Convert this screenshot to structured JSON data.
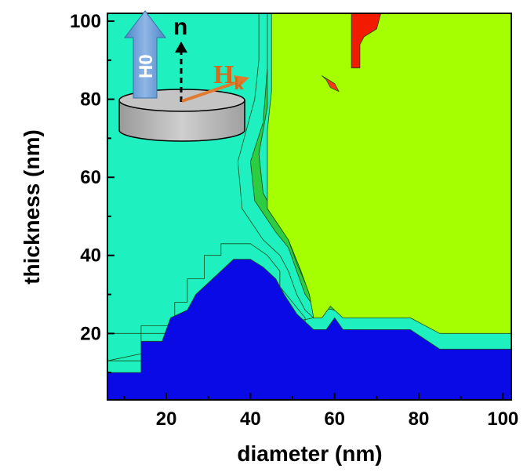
{
  "chart_data": {
    "type": "heatmap",
    "xlabel": "diameter (nm)",
    "ylabel": "thickness (nm)",
    "xlim": [
      6,
      102
    ],
    "ylim": [
      3,
      102
    ],
    "x_ticks": [
      20,
      40,
      60,
      80,
      100
    ],
    "y_ticks": [
      20,
      40,
      60,
      80,
      100
    ],
    "regions": [
      {
        "name": "teal",
        "color": "#1EF0C0",
        "polygon": [
          [
            6,
            13
          ],
          [
            14,
            13
          ],
          [
            14,
            22
          ],
          [
            22,
            22
          ],
          [
            22,
            28
          ],
          [
            25,
            28
          ],
          [
            25,
            34
          ],
          [
            29,
            34
          ],
          [
            29,
            40
          ],
          [
            33,
            40
          ],
          [
            33,
            43
          ],
          [
            40,
            43
          ],
          [
            44,
            40
          ],
          [
            47,
            36
          ],
          [
            47,
            32
          ],
          [
            50,
            28
          ],
          [
            53,
            24
          ],
          [
            53,
            20
          ],
          [
            6,
            20
          ],
          [
            6,
            102
          ],
          [
            42,
            102
          ],
          [
            42,
            90
          ],
          [
            41,
            80
          ],
          [
            39,
            72
          ],
          [
            37,
            64
          ],
          [
            38,
            52
          ],
          [
            43,
            44
          ],
          [
            47,
            40
          ],
          [
            49,
            36
          ],
          [
            51,
            30
          ],
          [
            53,
            26
          ],
          [
            55,
            24
          ]
        ]
      },
      {
        "name": "green",
        "color": "#2ECC40",
        "polygon": [
          [
            40,
            102
          ],
          [
            44,
            102
          ],
          [
            44,
            88
          ],
          [
            43,
            74
          ],
          [
            40,
            64
          ],
          [
            41,
            54
          ],
          [
            46,
            46
          ],
          [
            49,
            42
          ],
          [
            51,
            36
          ],
          [
            53,
            30
          ],
          [
            55,
            27
          ],
          [
            60,
            26
          ],
          [
            62,
            26
          ],
          [
            84,
            24
          ],
          [
            102,
            20
          ],
          [
            102,
            22
          ],
          [
            84,
            26
          ],
          [
            60,
            28
          ],
          [
            55,
            29
          ],
          [
            53,
            33
          ],
          [
            51,
            38
          ],
          [
            49,
            44
          ],
          [
            46,
            50
          ],
          [
            43,
            56
          ],
          [
            42,
            66
          ],
          [
            44,
            78
          ],
          [
            44,
            92
          ],
          [
            44,
            102
          ]
        ]
      },
      {
        "name": "yellow-green",
        "color": "#A6FF00",
        "polygon": [
          [
            44,
            102
          ],
          [
            102,
            102
          ],
          [
            102,
            20
          ],
          [
            85,
            20
          ],
          [
            78,
            24
          ],
          [
            62,
            24
          ],
          [
            59,
            27
          ],
          [
            57,
            24
          ],
          [
            55,
            24
          ],
          [
            54,
            30
          ],
          [
            52,
            36
          ],
          [
            49,
            44
          ],
          [
            44,
            52
          ],
          [
            44,
            72
          ],
          [
            45,
            82
          ],
          [
            45,
            102
          ]
        ]
      },
      {
        "name": "blue",
        "color": "#0A0AE6",
        "polygon": [
          [
            6,
            3
          ],
          [
            102,
            3
          ],
          [
            102,
            16
          ],
          [
            85,
            16
          ],
          [
            78,
            21
          ],
          [
            62,
            21
          ],
          [
            60,
            24
          ],
          [
            58,
            21
          ],
          [
            55,
            21
          ],
          [
            51,
            25
          ],
          [
            48,
            30
          ],
          [
            46,
            34
          ],
          [
            43,
            37
          ],
          [
            40,
            39
          ],
          [
            36,
            39
          ],
          [
            33,
            36
          ],
          [
            30,
            33
          ],
          [
            27,
            30
          ],
          [
            25,
            26
          ],
          [
            21,
            24
          ],
          [
            19,
            18
          ],
          [
            14,
            18
          ],
          [
            14,
            10
          ],
          [
            6,
            10
          ]
        ]
      },
      {
        "name": "red",
        "color": "#F21A00",
        "polygon": [
          [
            64,
            102
          ],
          [
            71,
            102
          ],
          [
            70,
            98
          ],
          [
            67,
            96
          ],
          [
            66,
            94
          ],
          [
            66,
            88
          ],
          [
            64,
            88
          ],
          [
            64,
            96
          ]
        ]
      },
      {
        "name": "red-spot",
        "color": "#FF3A10",
        "polygon": [
          [
            57,
            86
          ],
          [
            60,
            84
          ],
          [
            61,
            82
          ],
          [
            59,
            83
          ],
          [
            58,
            85
          ]
        ]
      }
    ]
  },
  "inset": {
    "field_label": "H0",
    "normal_label": "n",
    "anisotropy_label": "H",
    "anisotropy_sub": "k"
  }
}
